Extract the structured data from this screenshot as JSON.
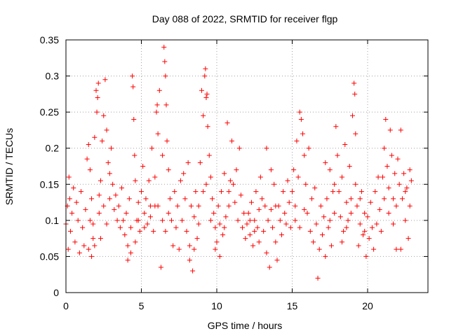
{
  "chart_data": {
    "type": "scatter",
    "title": "Day 088 of 2022, SRMTID for receiver flgp",
    "xlabel": "GPS time / hours",
    "ylabel": "SRMTID / TECUs",
    "xlim": [
      0,
      24
    ],
    "ylim": [
      0,
      0.35
    ],
    "xticks": [
      0,
      5,
      10,
      15,
      20
    ],
    "xtick_labels": [
      "0",
      "5",
      "10",
      "15",
      "20"
    ],
    "yticks": [
      0,
      0.05,
      0.1,
      0.15,
      0.2,
      0.25,
      0.3,
      0.35
    ],
    "ytick_labels": [
      "0",
      "0.05",
      "0.1",
      "0.15",
      "0.2",
      "0.25",
      "0.3",
      "0.35"
    ],
    "grid": true,
    "marker": "plus",
    "color": "#ff0000",
    "series": [
      {
        "points": [
          [
            0.0,
            0.095
          ],
          [
            0.1,
            0.12
          ],
          [
            0.15,
            0.06
          ],
          [
            0.2,
            0.16
          ],
          [
            0.25,
            0.13
          ],
          [
            0.3,
            0.085
          ],
          [
            0.4,
            0.11
          ],
          [
            0.5,
            0.145
          ],
          [
            0.6,
            0.07
          ],
          [
            0.7,
            0.125
          ],
          [
            0.8,
            0.1
          ],
          [
            0.9,
            0.055
          ],
          [
            1.0,
            0.14
          ],
          [
            1.1,
            0.09
          ],
          [
            1.2,
            0.065
          ],
          [
            1.3,
            0.115
          ],
          [
            1.4,
            0.185
          ],
          [
            1.5,
            0.06
          ],
          [
            1.6,
            0.1
          ],
          [
            1.7,
            0.05
          ],
          [
            1.8,
            0.075
          ],
          [
            1.9,
            0.215
          ],
          [
            1.5,
            0.205
          ],
          [
            1.6,
            0.17
          ],
          [
            1.7,
            0.13
          ],
          [
            1.8,
            0.095
          ],
          [
            1.9,
            0.065
          ],
          [
            2.0,
            0.28
          ],
          [
            2.05,
            0.25
          ],
          [
            2.1,
            0.27
          ],
          [
            2.15,
            0.29
          ],
          [
            2.2,
            0.135
          ],
          [
            2.3,
            0.155
          ],
          [
            2.4,
            0.21
          ],
          [
            2.5,
            0.245
          ],
          [
            2.6,
            0.295
          ],
          [
            2.7,
            0.225
          ],
          [
            2.8,
            0.18
          ],
          [
            2.9,
            0.165
          ],
          [
            2.2,
            0.11
          ],
          [
            2.3,
            0.075
          ],
          [
            2.5,
            0.12
          ],
          [
            2.7,
            0.095
          ],
          [
            2.9,
            0.13
          ],
          [
            3.0,
            0.2
          ],
          [
            3.1,
            0.15
          ],
          [
            3.2,
            0.115
          ],
          [
            3.3,
            0.135
          ],
          [
            3.4,
            0.1
          ],
          [
            3.5,
            0.12
          ],
          [
            3.6,
            0.09
          ],
          [
            3.7,
            0.145
          ],
          [
            3.8,
            0.1
          ],
          [
            3.9,
            0.08
          ],
          [
            4.0,
            0.11
          ],
          [
            4.1,
            0.065
          ],
          [
            4.2,
            0.13
          ],
          [
            4.3,
            0.09
          ],
          [
            4.4,
            0.3
          ],
          [
            4.45,
            0.285
          ],
          [
            4.5,
            0.24
          ],
          [
            4.55,
            0.19
          ],
          [
            4.6,
            0.155
          ],
          [
            4.7,
            0.1
          ],
          [
            4.8,
            0.125
          ],
          [
            4.9,
            0.085
          ],
          [
            4.1,
            0.045
          ],
          [
            4.3,
            0.055
          ],
          [
            4.6,
            0.07
          ],
          [
            4.8,
            0.1
          ],
          [
            5.0,
            0.14
          ],
          [
            5.1,
            0.175
          ],
          [
            5.2,
            0.11
          ],
          [
            5.3,
            0.13
          ],
          [
            5.4,
            0.095
          ],
          [
            5.5,
            0.155
          ],
          [
            5.6,
            0.12
          ],
          [
            5.7,
            0.2
          ],
          [
            5.8,
            0.085
          ],
          [
            5.9,
            0.16
          ],
          [
            5.2,
            0.09
          ],
          [
            5.6,
            0.105
          ],
          [
            5.9,
            0.12
          ],
          [
            6.0,
            0.25
          ],
          [
            6.05,
            0.26
          ],
          [
            6.1,
            0.22
          ],
          [
            6.2,
            0.28
          ],
          [
            6.3,
            0.035
          ],
          [
            6.4,
            0.19
          ],
          [
            6.5,
            0.34
          ],
          [
            6.55,
            0.32
          ],
          [
            6.6,
            0.3
          ],
          [
            6.65,
            0.26
          ],
          [
            6.7,
            0.21
          ],
          [
            6.8,
            0.17
          ],
          [
            6.9,
            0.13
          ],
          [
            6.1,
            0.12
          ],
          [
            6.4,
            0.1
          ],
          [
            6.6,
            0.085
          ],
          [
            6.8,
            0.11
          ],
          [
            7.0,
            0.1
          ],
          [
            7.1,
            0.065
          ],
          [
            7.2,
            0.14
          ],
          [
            7.3,
            0.09
          ],
          [
            7.4,
            0.12
          ],
          [
            7.5,
            0.06
          ],
          [
            7.6,
            0.155
          ],
          [
            7.7,
            0.1
          ],
          [
            7.8,
            0.165
          ],
          [
            7.9,
            0.13
          ],
          [
            8.0,
            0.085
          ],
          [
            8.1,
            0.18
          ],
          [
            8.2,
            0.045
          ],
          [
            8.3,
            0.12
          ],
          [
            8.4,
            0.03
          ],
          [
            8.5,
            0.105
          ],
          [
            8.6,
            0.14
          ],
          [
            8.7,
            0.075
          ],
          [
            8.8,
            0.095
          ],
          [
            8.9,
            0.18
          ],
          [
            8.2,
            0.065
          ],
          [
            8.5,
            0.06
          ],
          [
            8.8,
            0.12
          ],
          [
            9.0,
            0.28
          ],
          [
            9.1,
            0.245
          ],
          [
            9.2,
            0.3
          ],
          [
            9.25,
            0.31
          ],
          [
            9.3,
            0.27
          ],
          [
            9.35,
            0.275
          ],
          [
            9.4,
            0.23
          ],
          [
            9.5,
            0.19
          ],
          [
            9.6,
            0.16
          ],
          [
            9.7,
            0.13
          ],
          [
            9.8,
            0.11
          ],
          [
            9.9,
            0.09
          ],
          [
            9.1,
            0.14
          ],
          [
            9.3,
            0.15
          ],
          [
            9.6,
            0.1
          ],
          [
            9.9,
            0.06
          ],
          [
            10.0,
            0.07
          ],
          [
            10.1,
            0.12
          ],
          [
            10.2,
            0.095
          ],
          [
            10.3,
            0.14
          ],
          [
            10.4,
            0.08
          ],
          [
            10.5,
            0.165
          ],
          [
            10.6,
            0.105
          ],
          [
            10.7,
            0.235
          ],
          [
            10.8,
            0.14
          ],
          [
            10.9,
            0.155
          ],
          [
            10.2,
            0.05
          ],
          [
            10.5,
            0.09
          ],
          [
            10.8,
            0.12
          ],
          [
            11.0,
            0.21
          ],
          [
            11.1,
            0.15
          ],
          [
            11.2,
            0.125
          ],
          [
            11.3,
            0.17
          ],
          [
            11.4,
            0.1
          ],
          [
            11.5,
            0.2
          ],
          [
            11.6,
            0.135
          ],
          [
            11.7,
            0.09
          ],
          [
            11.8,
            0.11
          ],
          [
            11.9,
            0.075
          ],
          [
            12.0,
            0.095
          ],
          [
            12.1,
            0.11
          ],
          [
            12.2,
            0.08
          ],
          [
            12.3,
            0.125
          ],
          [
            12.4,
            0.065
          ],
          [
            12.5,
            0.1
          ],
          [
            12.6,
            0.14
          ],
          [
            12.7,
            0.09
          ],
          [
            12.8,
            0.115
          ],
          [
            12.9,
            0.16
          ],
          [
            12.2,
            0.1
          ],
          [
            12.5,
            0.085
          ],
          [
            12.8,
            0.07
          ],
          [
            13.0,
            0.13
          ],
          [
            13.1,
            0.085
          ],
          [
            13.2,
            0.12
          ],
          [
            13.3,
            0.055
          ],
          [
            13.4,
            0.1
          ],
          [
            13.5,
            0.035
          ],
          [
            13.6,
            0.115
          ],
          [
            13.7,
            0.09
          ],
          [
            13.8,
            0.15
          ],
          [
            13.9,
            0.07
          ],
          [
            13.3,
            0.2
          ],
          [
            13.6,
            0.17
          ],
          [
            13.9,
            0.12
          ],
          [
            14.0,
            0.045
          ],
          [
            14.1,
            0.12
          ],
          [
            14.2,
            0.1
          ],
          [
            14.3,
            0.08
          ],
          [
            14.4,
            0.14
          ],
          [
            14.5,
            0.11
          ],
          [
            14.6,
            0.095
          ],
          [
            14.7,
            0.155
          ],
          [
            14.8,
            0.125
          ],
          [
            14.9,
            0.09
          ],
          [
            15.0,
            0.14
          ],
          [
            15.1,
            0.17
          ],
          [
            15.2,
            0.12
          ],
          [
            15.3,
            0.21
          ],
          [
            15.4,
            0.16
          ],
          [
            15.5,
            0.25
          ],
          [
            15.6,
            0.24
          ],
          [
            15.7,
            0.22
          ],
          [
            15.8,
            0.19
          ],
          [
            15.9,
            0.15
          ],
          [
            15.2,
            0.1
          ],
          [
            15.5,
            0.09
          ],
          [
            15.8,
            0.115
          ],
          [
            16.0,
            0.11
          ],
          [
            16.1,
            0.2
          ],
          [
            16.2,
            0.085
          ],
          [
            16.3,
            0.13
          ],
          [
            16.4,
            0.07
          ],
          [
            16.5,
            0.145
          ],
          [
            16.6,
            0.095
          ],
          [
            16.7,
            0.02
          ],
          [
            16.8,
            0.06
          ],
          [
            16.9,
            0.12
          ],
          [
            17.0,
            0.08
          ],
          [
            17.1,
            0.105
          ],
          [
            17.2,
            0.05
          ],
          [
            17.3,
            0.13
          ],
          [
            17.4,
            0.09
          ],
          [
            17.5,
            0.17
          ],
          [
            17.6,
            0.065
          ],
          [
            17.7,
            0.14
          ],
          [
            17.8,
            0.11
          ],
          [
            17.9,
            0.23
          ],
          [
            17.2,
            0.18
          ],
          [
            17.5,
            0.1
          ],
          [
            17.8,
            0.15
          ],
          [
            18.0,
            0.19
          ],
          [
            18.1,
            0.14
          ],
          [
            18.2,
            0.105
          ],
          [
            18.3,
            0.16
          ],
          [
            18.4,
            0.085
          ],
          [
            18.5,
            0.205
          ],
          [
            18.6,
            0.125
          ],
          [
            18.7,
            0.1
          ],
          [
            18.8,
            0.175
          ],
          [
            18.9,
            0.13
          ],
          [
            18.3,
            0.07
          ],
          [
            18.6,
            0.09
          ],
          [
            18.9,
            0.11
          ],
          [
            19.0,
            0.245
          ],
          [
            19.1,
            0.29
          ],
          [
            19.15,
            0.275
          ],
          [
            19.2,
            0.22
          ],
          [
            19.3,
            0.12
          ],
          [
            19.4,
            0.065
          ],
          [
            19.5,
            0.095
          ],
          [
            19.6,
            0.14
          ],
          [
            19.7,
            0.08
          ],
          [
            19.8,
            0.11
          ],
          [
            19.9,
            0.05
          ],
          [
            19.2,
            0.15
          ],
          [
            19.5,
            0.13
          ],
          [
            19.8,
            0.085
          ],
          [
            20.0,
            0.105
          ],
          [
            20.1,
            0.075
          ],
          [
            20.2,
            0.125
          ],
          [
            20.3,
            0.09
          ],
          [
            20.4,
            0.06
          ],
          [
            20.5,
            0.14
          ],
          [
            20.6,
            0.095
          ],
          [
            20.7,
            0.16
          ],
          [
            20.8,
            0.115
          ],
          [
            20.9,
            0.085
          ],
          [
            21.0,
            0.16
          ],
          [
            21.1,
            0.2
          ],
          [
            21.2,
            0.24
          ],
          [
            21.3,
            0.175
          ],
          [
            21.4,
            0.145
          ],
          [
            21.5,
            0.225
          ],
          [
            21.6,
            0.19
          ],
          [
            21.7,
            0.13
          ],
          [
            21.8,
            0.165
          ],
          [
            21.9,
            0.12
          ],
          [
            21.1,
            0.13
          ],
          [
            21.4,
            0.11
          ],
          [
            21.7,
            0.095
          ],
          [
            21.9,
            0.06
          ],
          [
            22.0,
            0.185
          ],
          [
            22.1,
            0.15
          ],
          [
            22.2,
            0.225
          ],
          [
            22.3,
            0.13
          ],
          [
            22.4,
            0.165
          ],
          [
            22.5,
            0.1
          ],
          [
            22.6,
            0.145
          ],
          [
            22.7,
            0.075
          ],
          [
            22.8,
            0.12
          ],
          [
            22.9,
            0.155
          ],
          [
            22.2,
            0.06
          ],
          [
            22.5,
            0.14
          ],
          [
            22.8,
            0.17
          ]
        ]
      }
    ]
  }
}
